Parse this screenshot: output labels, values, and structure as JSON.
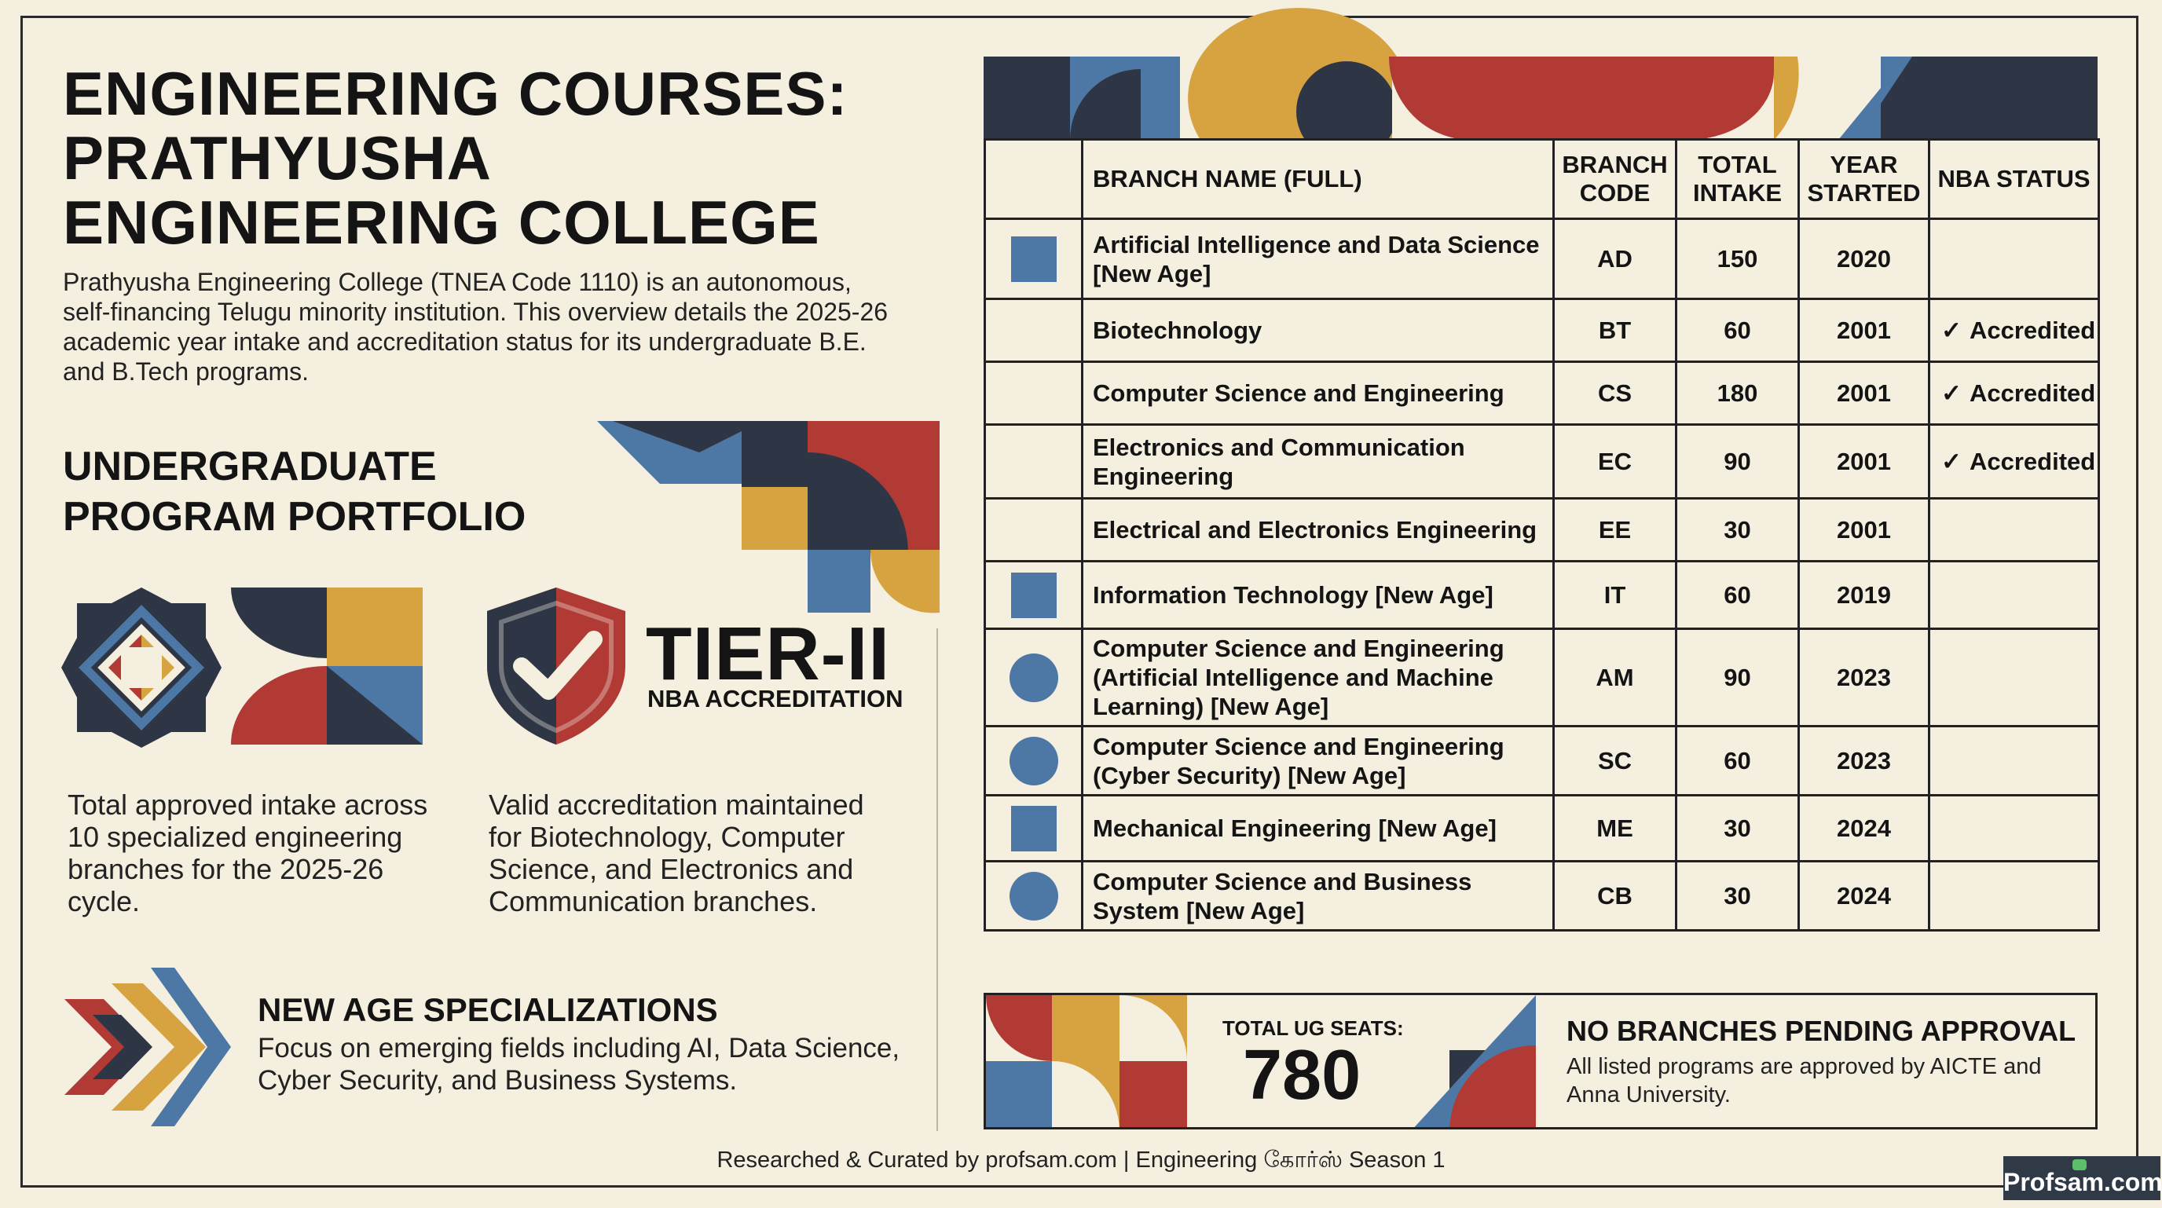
{
  "header": {
    "title": "ENGINEERING COURSES: PRATHYUSHA ENGINEERING COLLEGE",
    "intro": "Prathyusha Engineering College (TNEA Code 1110) is an autonomous, self-financing Telugu minority institution. This overview details the 2025-26 academic year intake and accreditation status for its undergraduate B.E. and B.Tech programs."
  },
  "portfolio": {
    "heading": "UNDERGRADUATE PROGRAM PORTFOLIO",
    "intake_text": "Total approved intake across 10 specialized engineering branches for the 2025-26 cycle.",
    "tier_value": "TIER-II",
    "tier_label": "NBA ACCREDITATION",
    "accreditation_text": "Valid accreditation maintained for Biotechnology, Computer Science, and Electronics and Communication branches."
  },
  "new_age": {
    "heading": "NEW AGE SPECIALIZATIONS",
    "description": "Focus on emerging fields including AI, Data Science, Cyber Security, and Business Systems."
  },
  "colors": {
    "navy": "#2e3646",
    "blue": "#4d78a5",
    "red": "#b13a35",
    "gold": "#d6a340",
    "cream": "#f4efdf"
  },
  "table": {
    "columns": [
      "",
      "BRANCH NAME (FULL)",
      "BRANCH CODE",
      "TOTAL INTAKE",
      "YEAR STARTED",
      "NBA STATUS"
    ],
    "check_mark": "✓",
    "rows": [
      {
        "icon": "square",
        "name": "Artificial Intelligence and Data Science [New Age]",
        "code": "AD",
        "intake": "150",
        "year": "2020",
        "nba": ""
      },
      {
        "icon": "none",
        "name": "Biotechnology",
        "code": "BT",
        "intake": "60",
        "year": "2001",
        "nba": "Accredited"
      },
      {
        "icon": "none",
        "name": "Computer Science and Engineering",
        "code": "CS",
        "intake": "180",
        "year": "2001",
        "nba": "Accredited"
      },
      {
        "icon": "none",
        "name": "Electronics and Communication Engineering",
        "code": "EC",
        "intake": "90",
        "year": "2001",
        "nba": "Accredited"
      },
      {
        "icon": "none",
        "name": "Electrical and Electronics Engineering",
        "code": "EE",
        "intake": "30",
        "year": "2001",
        "nba": ""
      },
      {
        "icon": "square",
        "name": "Information Technology [New Age]",
        "code": "IT",
        "intake": "60",
        "year": "2019",
        "nba": ""
      },
      {
        "icon": "circle",
        "name": "Computer Science and Engineering (Artificial Intelligence and Machine Learning) [New Age]",
        "code": "AM",
        "intake": "90",
        "year": "2023",
        "nba": ""
      },
      {
        "icon": "circle",
        "name": "Computer Science and Engineering (Cyber Security) [New Age]",
        "code": "SC",
        "intake": "60",
        "year": "2023",
        "nba": ""
      },
      {
        "icon": "square",
        "name": "Mechanical Engineering [New Age]",
        "code": "ME",
        "intake": "30",
        "year": "2024",
        "nba": ""
      },
      {
        "icon": "circle",
        "name": "Computer Science and Business System [New Age]",
        "code": "CB",
        "intake": "30",
        "year": "2024",
        "nba": ""
      }
    ]
  },
  "seats": {
    "label": "TOTAL UG SEATS:",
    "value": "780"
  },
  "pending": {
    "heading": "NO BRANCHES PENDING APPROVAL",
    "description": "All listed programs are approved by AICTE and Anna University."
  },
  "footer": {
    "text": "Researched & Curated by profsam.com | Engineering கோர்ஸ் Season 1",
    "logo": "Profsam.com"
  }
}
